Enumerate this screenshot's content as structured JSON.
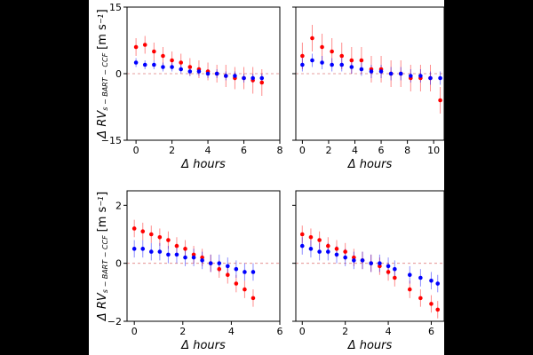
{
  "chart_data": [
    {
      "type": "scatter",
      "xlabel": "Δ hours",
      "ylabel": [
        "Δ RV",
        "s − BART − CCF",
        "[m s",
        "−1",
        "]"
      ],
      "x": [
        0,
        0.5,
        1,
        1.5,
        2,
        2.5,
        3,
        3.5,
        4,
        4.5,
        5,
        5.5,
        6,
        6.5,
        7
      ],
      "series": [
        {
          "color": "#ff0000",
          "values": [
            6,
            6.5,
            5,
            4,
            3,
            2.5,
            1.5,
            1,
            0.5,
            0,
            -0.5,
            -1,
            -1,
            -1.5,
            -2
          ],
          "errors": [
            2,
            2,
            2,
            2,
            2,
            2,
            2,
            2,
            2,
            2,
            2.5,
            2.5,
            2.5,
            3,
            3
          ]
        },
        {
          "color": "#0000ff",
          "values": [
            2.5,
            2,
            2,
            1.5,
            1.5,
            1,
            0.5,
            0.5,
            0,
            0,
            -0.5,
            -0.5,
            -1,
            -1,
            -1
          ],
          "errors": [
            1,
            1,
            1,
            1,
            1,
            1,
            1,
            1,
            1,
            1,
            1,
            1,
            1,
            1,
            1
          ]
        }
      ],
      "xlim": [
        -0.5,
        8
      ],
      "ylim": [
        -15,
        15
      ],
      "xticks": [
        0,
        2,
        4,
        6,
        8
      ],
      "yticks": [
        {
          "value": -15,
          "label": "−15"
        },
        0,
        15
      ],
      "hline": 0
    },
    {
      "type": "scatter",
      "xlabel": "Δ hours",
      "sharey": true,
      "x": [
        0,
        0.75,
        1.5,
        2.25,
        3,
        3.75,
        4.5,
        5.25,
        6,
        6.75,
        7.5,
        8.25,
        9,
        9.75,
        10.5
      ],
      "series": [
        {
          "color": "#ff0000",
          "values": [
            4,
            8,
            6,
            5,
            4,
            3,
            3,
            1,
            1,
            0,
            0,
            -1,
            -1,
            -1,
            -6
          ],
          "errors": [
            3,
            3,
            3,
            3,
            3,
            3,
            3,
            3,
            3,
            3,
            3,
            3,
            3,
            3,
            3
          ]
        },
        {
          "color": "#0000ff",
          "values": [
            2,
            3,
            2.5,
            2,
            2,
            1.5,
            1,
            0.5,
            0.5,
            0,
            0,
            -0.5,
            -0.5,
            -1,
            -1
          ],
          "errors": [
            1.5,
            1.5,
            1.5,
            1.5,
            1.5,
            1.5,
            1.5,
            1.5,
            1.5,
            1.5,
            1.5,
            1.5,
            1.5,
            1.5,
            1.5
          ]
        }
      ],
      "xlim": [
        -0.5,
        10.8
      ],
      "ylim": [
        -15,
        15
      ],
      "xticks": [
        0,
        2,
        4,
        6,
        8,
        10
      ],
      "yticks": [
        -15,
        0,
        15
      ],
      "hline": 0
    },
    {
      "type": "scatter",
      "xlabel": "Δ hours",
      "ylabel": [
        "Δ RV",
        "s − BART − CCF",
        "[m s",
        "−1",
        "]"
      ],
      "x": [
        0,
        0.35,
        0.7,
        1.05,
        1.4,
        1.75,
        2.1,
        2.45,
        2.8,
        3.15,
        3.5,
        3.85,
        4.2,
        4.55,
        4.9
      ],
      "series": [
        {
          "color": "#ff0000",
          "values": [
            1.2,
            1.1,
            1,
            0.9,
            0.8,
            0.6,
            0.5,
            0.3,
            0.2,
            0,
            -0.2,
            -0.4,
            -0.7,
            -0.9,
            -1.2
          ],
          "errors": [
            0.3,
            0.3,
            0.3,
            0.3,
            0.3,
            0.3,
            0.3,
            0.3,
            0.3,
            0.3,
            0.3,
            0.3,
            0.3,
            0.3,
            0.3
          ]
        },
        {
          "color": "#0000ff",
          "values": [
            0.5,
            0.5,
            0.4,
            0.4,
            0.3,
            0.3,
            0.2,
            0.2,
            0.1,
            0,
            0,
            -0.1,
            -0.2,
            -0.3,
            -0.3
          ],
          "errors": [
            0.3,
            0.3,
            0.3,
            0.3,
            0.3,
            0.3,
            0.3,
            0.3,
            0.3,
            0.3,
            0.3,
            0.3,
            0.3,
            0.3,
            0.3
          ]
        }
      ],
      "xlim": [
        -0.3,
        6
      ],
      "ylim": [
        -2,
        2.5
      ],
      "xticks": [
        0,
        2,
        4,
        6
      ],
      "yticks": [
        {
          "value": -2,
          "label": "−2"
        },
        0,
        2
      ],
      "hline": 0
    },
    {
      "type": "scatter",
      "xlabel": "Δ hours",
      "sharey": true,
      "x": [
        0,
        0.4,
        0.8,
        1.2,
        1.6,
        2,
        2.4,
        2.8,
        3.2,
        3.6,
        4,
        4.3,
        5,
        5.5,
        6,
        6.3
      ],
      "series": [
        {
          "color": "#ff0000",
          "values": [
            1,
            0.9,
            0.8,
            0.6,
            0.5,
            0.4,
            0.2,
            0.1,
            0,
            -0.1,
            -0.3,
            -0.5,
            -0.9,
            -1.2,
            -1.4,
            -1.6
          ],
          "errors": [
            0.3,
            0.3,
            0.3,
            0.3,
            0.3,
            0.3,
            0.3,
            0.3,
            0.3,
            0.3,
            0.3,
            0.3,
            0.3,
            0.3,
            0.3,
            0.3
          ]
        },
        {
          "color": "#0000ff",
          "values": [
            0.6,
            0.5,
            0.4,
            0.4,
            0.3,
            0.2,
            0.1,
            0.1,
            0,
            0,
            -0.1,
            -0.2,
            -0.4,
            -0.5,
            -0.6,
            -0.7
          ],
          "errors": [
            0.3,
            0.3,
            0.3,
            0.3,
            0.3,
            0.3,
            0.3,
            0.3,
            0.3,
            0.3,
            0.3,
            0.3,
            0.3,
            0.3,
            0.3,
            0.3
          ]
        }
      ],
      "xlim": [
        -0.3,
        6.6
      ],
      "ylim": [
        -2,
        2.5
      ],
      "xticks": [
        0,
        2,
        4,
        6
      ],
      "yticks": [
        -2,
        0,
        2
      ],
      "hline": 0
    }
  ]
}
